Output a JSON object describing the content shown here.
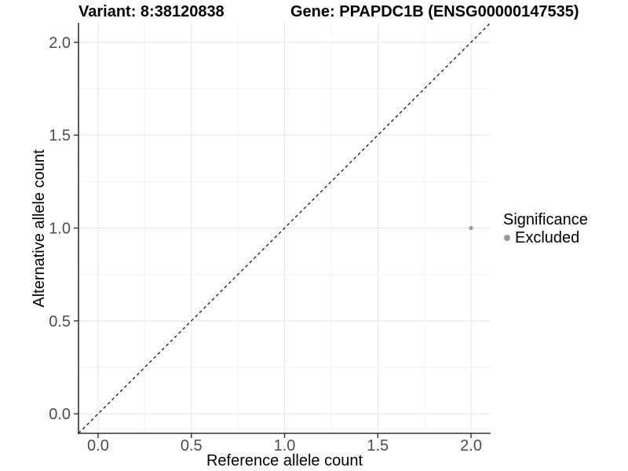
{
  "chart_data": {
    "type": "scatter",
    "title_left": "Variant: 8:38120838",
    "title_right": "Gene: PPAPDC1B (ENSG00000147535)",
    "xlabel": "Reference allele count",
    "ylabel": "Alternative allele count",
    "xlim": [
      -0.105,
      2.105
    ],
    "ylim": [
      -0.105,
      2.105
    ],
    "x_ticks": [
      0,
      0.5,
      1,
      1.5,
      2
    ],
    "x_tick_labels": [
      "0.0",
      "0.5",
      "1.0",
      "1.5",
      "2.0"
    ],
    "y_ticks": [
      0,
      0.5,
      1,
      1.5,
      2
    ],
    "y_tick_labels": [
      "0.0",
      "0.5",
      "1.0",
      "1.5",
      "2.0"
    ],
    "x_minor_ticks": [
      0.25,
      0.75,
      1.25,
      1.75
    ],
    "y_minor_ticks": [
      0.25,
      0.75,
      1.25,
      1.75
    ],
    "grid": true,
    "legend_position": "right",
    "legend_title": "Significance",
    "reference_line": {
      "type": "identity",
      "equation": "y = x",
      "style": "dashed",
      "color": "#1a1a1a"
    },
    "series": [
      {
        "name": "Excluded",
        "color": "#999999",
        "points": [
          {
            "x": 2.0,
            "y": 1.0
          }
        ]
      }
    ]
  }
}
